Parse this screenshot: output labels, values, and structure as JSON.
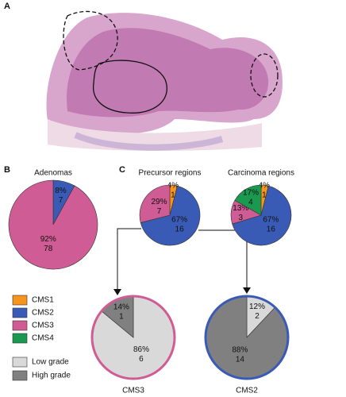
{
  "panel_labels": [
    "A",
    "B",
    "C"
  ],
  "legend": [
    {
      "name": "CMS1",
      "color": "#f7941d"
    },
    {
      "name": "CMS2",
      "color": "#3a5bb5"
    },
    {
      "name": "CMS3",
      "color": "#d05c95"
    },
    {
      "name": "CMS4",
      "color": "#1a9a50"
    }
  ],
  "grade_legend": [
    {
      "name": "Low grade",
      "color": "#d9d9d9"
    },
    {
      "name": "High grade",
      "color": "#808080"
    }
  ],
  "chart_data": [
    {
      "type": "pie",
      "title": "Adenomas",
      "categories": [
        "CMS2",
        "CMS3"
      ],
      "values": [
        8,
        92
      ],
      "value_labels": [
        "8%",
        "92%"
      ],
      "counts": [
        7,
        78
      ],
      "colors": [
        "#3a5bb5",
        "#d05c95"
      ]
    },
    {
      "type": "pie",
      "title": "Precursor regions",
      "categories": [
        "CMS1",
        "CMS2",
        "CMS3"
      ],
      "values": [
        4,
        67,
        29
      ],
      "value_labels": [
        "4%",
        "67%",
        "29%"
      ],
      "counts": [
        1,
        16,
        7
      ],
      "colors": [
        "#f7941d",
        "#3a5bb5",
        "#d05c95"
      ]
    },
    {
      "type": "pie",
      "title": "Carcinoma regions",
      "categories": [
        "CMS1",
        "CMS2",
        "CMS3",
        "CMS4"
      ],
      "values": [
        4,
        67,
        13,
        17
      ],
      "value_labels": [
        "4%",
        "67%",
        "13%",
        "17%"
      ],
      "counts": [
        1,
        16,
        3,
        4
      ],
      "colors": [
        "#f7941d",
        "#3a5bb5",
        "#d05c95",
        "#1a9a50"
      ]
    },
    {
      "type": "pie",
      "title": "CMS3",
      "categories": [
        "Low grade",
        "High grade"
      ],
      "values": [
        86,
        14
      ],
      "value_labels": [
        "86%",
        "14%"
      ],
      "counts": [
        6,
        1
      ],
      "colors": [
        "#d9d9d9",
        "#808080"
      ],
      "edgecolor": "#d05c95"
    },
    {
      "type": "pie",
      "title": "CMS2",
      "categories": [
        "Low grade",
        "High grade"
      ],
      "values": [
        12,
        88
      ],
      "value_labels": [
        "12%",
        "88%"
      ],
      "counts": [
        2,
        14
      ],
      "colors": [
        "#d9d9d9",
        "#808080"
      ],
      "edgecolor": "#3a5bb5"
    }
  ]
}
